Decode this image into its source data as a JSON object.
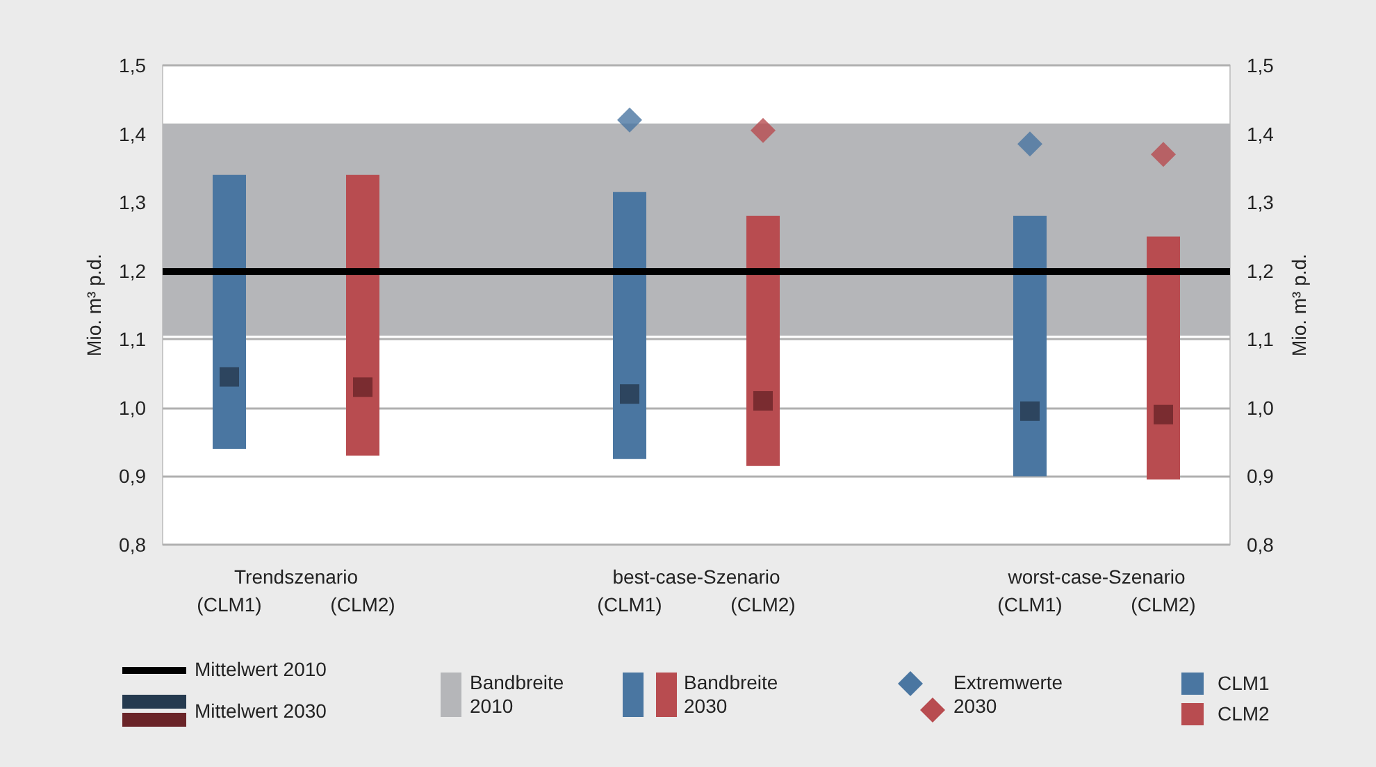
{
  "chart_data": {
    "type": "bar",
    "ylabel": "Mio. m³ p.d.",
    "y2label": "Mio. m³ p.d.",
    "categories": [
      "(CLM1)",
      "(CLM2)",
      null,
      "(CLM1)",
      "(CLM2)",
      null,
      "(CLM1)",
      "(CLM2)"
    ],
    "series": [
      {
        "name": "Bandbreite 2030",
        "colors": [
          "#4a76a1",
          "#b84c50",
          null,
          "#4a76a1",
          "#b84c50",
          null,
          "#4a76a1",
          "#b84c50"
        ],
        "base": [
          0.94,
          0.93,
          null,
          0.925,
          0.915,
          null,
          0.9,
          0.895
        ],
        "values": [
          0.4,
          0.41,
          null,
          0.39,
          0.365,
          null,
          0.38,
          0.355
        ]
      },
      {
        "name": "Mittelwert 2030",
        "type": "scatter",
        "marker": "square",
        "colors": [
          "#253a4f",
          "#6a2428",
          null,
          "#253a4f",
          "#6a2428",
          null,
          "#253a4f",
          "#6a2428"
        ],
        "values": [
          1.045,
          1.03,
          null,
          1.02,
          1.01,
          null,
          0.995,
          0.99
        ]
      },
      {
        "name": "Extremwerte 2030",
        "type": "scatter",
        "marker": "diamond",
        "colors": [
          "#4a76a1",
          "#b84c50",
          null,
          "#4a76a1",
          "#b84c50",
          null,
          "#4a76a1",
          "#b84c50"
        ],
        "values": [
          null,
          null,
          null,
          1.42,
          1.405,
          null,
          1.385,
          1.37
        ]
      }
    ],
    "ylim": [
      0.8,
      1.5
    ],
    "yticks": [
      {
        "value": 0.8,
        "label": "0,8"
      },
      {
        "value": 0.9,
        "label": "0,9"
      },
      {
        "value": 1.0,
        "label": "1,0"
      },
      {
        "value": 1.1,
        "label": "1,1"
      },
      {
        "value": 1.2,
        "label": "1,2"
      },
      {
        "value": 1.3,
        "label": "1,3"
      },
      {
        "value": 1.4,
        "label": "1,4"
      },
      {
        "value": 1.5,
        "label": "1,5"
      }
    ],
    "y2lim": [
      0.8,
      1.5
    ],
    "y2ticks": [
      {
        "value": 0.8,
        "label": "0,8"
      },
      {
        "value": 0.9,
        "label": "0,9"
      },
      {
        "value": 1.0,
        "label": "1,0"
      },
      {
        "value": 1.1,
        "label": "1,1"
      },
      {
        "value": 1.2,
        "label": "1,2"
      },
      {
        "value": 1.3,
        "label": "1,3"
      },
      {
        "value": 1.4,
        "label": "1,4"
      },
      {
        "value": 1.5,
        "label": "1,5"
      }
    ],
    "ref_lines": [
      {
        "axis": "y",
        "value": 1.2,
        "label": "Mittelwert 2010",
        "color": "#000000"
      }
    ],
    "bands": [
      {
        "axis": "y",
        "from": 1.105,
        "to": 1.415,
        "label": "Bandbreite 2010",
        "color": "#b5b6b9"
      }
    ],
    "annotations": [
      "Trendszenario",
      "best-case-Szenario",
      "worst-case-Szenario",
      "CLM1",
      "CLM2"
    ],
    "grid": "y",
    "legend": "bottom"
  }
}
